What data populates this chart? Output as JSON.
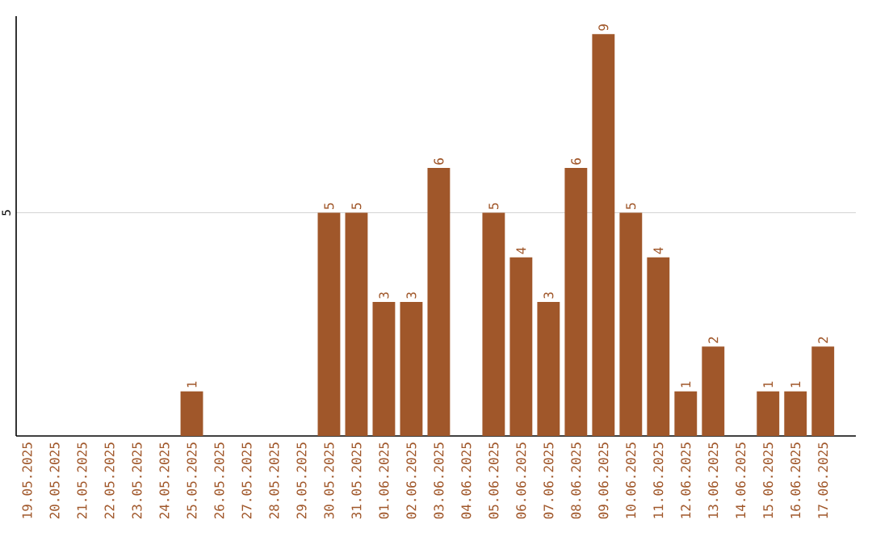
{
  "chart_data": {
    "type": "bar",
    "categories": [
      "19.05.2025",
      "20.05.2025",
      "21.05.2025",
      "22.05.2025",
      "23.05.2025",
      "24.05.2025",
      "25.05.2025",
      "26.05.2025",
      "27.05.2025",
      "28.05.2025",
      "29.05.2025",
      "30.05.2025",
      "31.05.2025",
      "01.06.2025",
      "02.06.2025",
      "03.06.2025",
      "04.06.2025",
      "05.06.2025",
      "06.06.2025",
      "07.06.2025",
      "08.06.2025",
      "09.06.2025",
      "10.06.2025",
      "11.06.2025",
      "12.06.2025",
      "13.06.2025",
      "14.06.2025",
      "15.06.2025",
      "16.06.2025",
      "17.06.2025"
    ],
    "values": [
      0,
      0,
      0,
      0,
      0,
      0,
      1,
      0,
      0,
      0,
      0,
      5,
      5,
      3,
      3,
      6,
      0,
      5,
      4,
      3,
      6,
      9,
      5,
      4,
      1,
      2,
      0,
      1,
      1,
      2
    ],
    "value_labels": [
      null,
      null,
      null,
      null,
      null,
      null,
      "1",
      null,
      null,
      null,
      null,
      "5",
      "5",
      "3",
      "3",
      "6",
      null,
      "5",
      "4",
      "3",
      "6",
      "9",
      "5",
      "4",
      "1",
      "2",
      null,
      "1",
      "1",
      "2"
    ],
    "color": "#a0572a",
    "ylim": [
      0,
      9.4
    ],
    "yticks": [
      5
    ],
    "grid": "y"
  }
}
